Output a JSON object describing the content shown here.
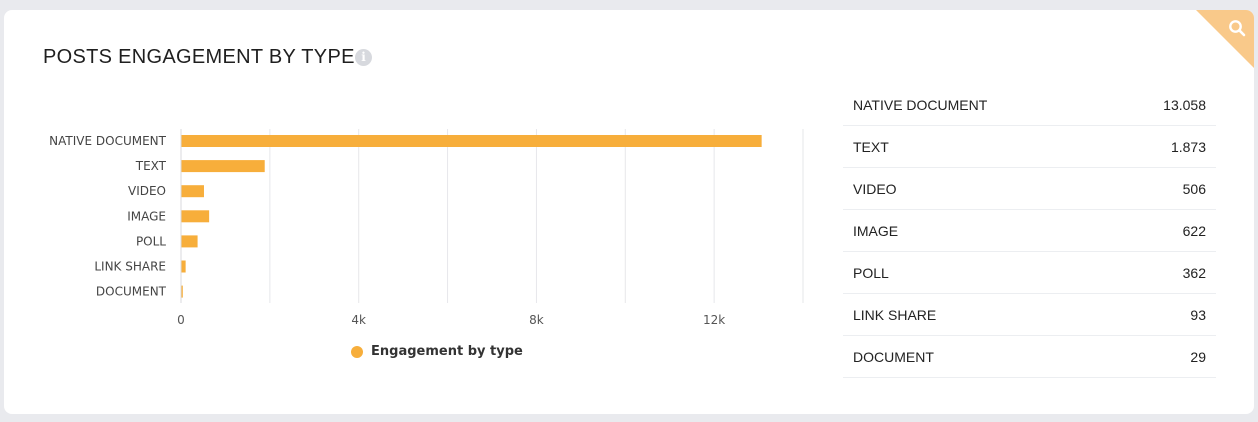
{
  "card": {
    "title": "POSTS ENGAGEMENT BY TYPE",
    "info_icon": "info-icon",
    "corner_icon": "search-icon",
    "accent": "#f7ae3b"
  },
  "chart_data": {
    "type": "bar",
    "orientation": "horizontal",
    "categories": [
      "NATIVE DOCUMENT",
      "TEXT",
      "VIDEO",
      "IMAGE",
      "POLL",
      "LINK SHARE",
      "DOCUMENT"
    ],
    "series": [
      {
        "name": "Engagement by type",
        "values": [
          13058,
          1873,
          506,
          622,
          362,
          93,
          29
        ],
        "color": "#f7ae3b"
      }
    ],
    "xlim": [
      0,
      14000
    ],
    "xticks": [
      0,
      4000,
      8000,
      12000
    ],
    "xtick_labels": [
      "0",
      "4k",
      "8k",
      "12k"
    ],
    "grid": true,
    "legend_position": "bottom"
  },
  "table": {
    "rows": [
      {
        "label": "NATIVE DOCUMENT",
        "value": "13.058"
      },
      {
        "label": "TEXT",
        "value": "1.873"
      },
      {
        "label": "VIDEO",
        "value": "506"
      },
      {
        "label": "IMAGE",
        "value": "622"
      },
      {
        "label": "POLL",
        "value": "362"
      },
      {
        "label": "LINK SHARE",
        "value": "93"
      },
      {
        "label": "DOCUMENT",
        "value": "29"
      }
    ]
  }
}
